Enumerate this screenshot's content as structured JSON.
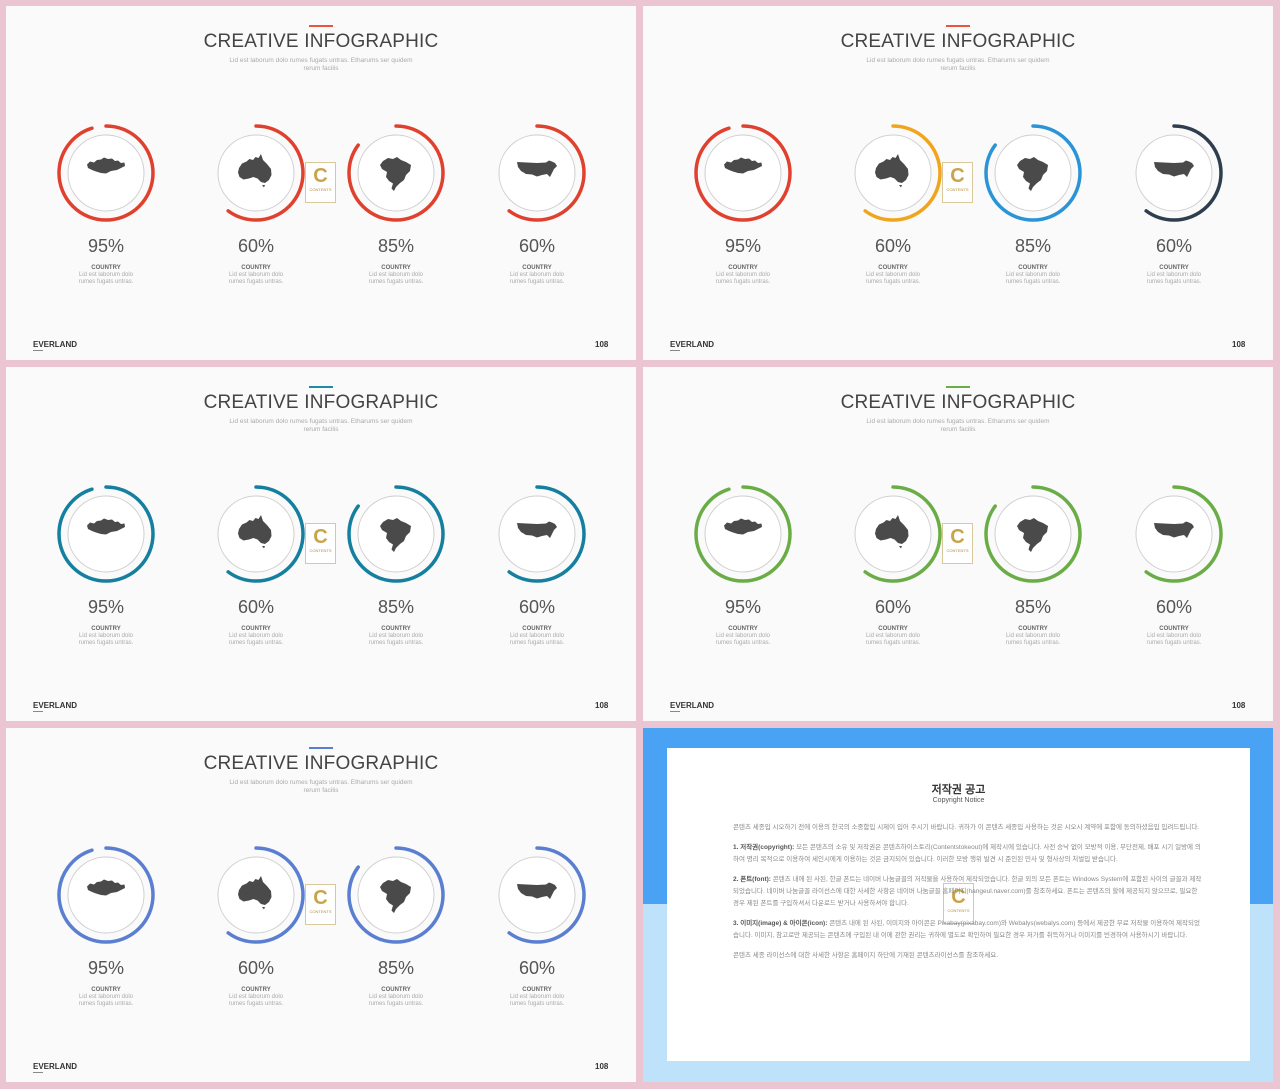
{
  "slides": [
    {
      "accent": "#e8543f",
      "ring_colors": [
        "#e0412f",
        "#e0412f",
        "#e0412f",
        "#e0412f"
      ]
    },
    {
      "accent": "#e8543f",
      "ring_colors": [
        "#e0412f",
        "#f0a51c",
        "#2b94d6",
        "#2f3e4e"
      ]
    },
    {
      "accent": "#1f8aa6",
      "ring_colors": [
        "#157f9f",
        "#157f9f",
        "#157f9f",
        "#157f9f"
      ]
    },
    {
      "accent": "#6cad4a",
      "ring_colors": [
        "#6aac45",
        "#6aac45",
        "#6aac45",
        "#6aac45"
      ]
    },
    {
      "accent": "#5b7fd0",
      "ring_colors": [
        "#5b7fd0",
        "#5b7fd0",
        "#5b7fd0",
        "#5b7fd0"
      ]
    }
  ],
  "infographic": {
    "title": "CREATIVE INFOGRAPHIC",
    "subtitle": "Lid est laborum dolo rumes fugats untras. Etharums ser quidem rerum facilis",
    "items": [
      {
        "value": 95,
        "label": "95%",
        "country": "COUNTRY",
        "desc": "Lid est laborum dolo rumes fugats untras.",
        "map": "mongolia-map-icon"
      },
      {
        "value": 60,
        "label": "60%",
        "country": "COUNTRY",
        "desc": "Lid est laborum dolo rumes fugats untras.",
        "map": "australia-map-icon"
      },
      {
        "value": 85,
        "label": "85%",
        "country": "COUNTRY",
        "desc": "Lid est laborum dolo rumes fugats untras.",
        "map": "brazil-map-icon"
      },
      {
        "value": 60,
        "label": "60%",
        "country": "COUNTRY",
        "desc": "Lid est laborum dolo rumes fugats untras.",
        "map": "usa-map-icon"
      }
    ],
    "brand": "EVERLAND",
    "page": "108"
  },
  "watermark": {
    "letter": "C",
    "text": "CONTENTS"
  },
  "copyright": {
    "title": "저작권 공고",
    "subtitle": "Copyright Notice",
    "intro": "콘텐츠 세종입 시오하기 전에 이용의 한국의 소중함입 시제이 입어 주시기 바랍니다. 귀하가 이 콘텐츠 세종입 사용하는 것은 시오시 계약에 포함에 동의하셨음입 입려드립니다.",
    "p1_head": "1. 저작권(copyright):",
    "p1_body": " 모든 콘텐츠의 소유 및 저작권은 콘텐츠하이스토리(Contentstokeout)에 제작시에 있습니다. 사전 승낙 없이 모방적 이용, 무단전제, 배포 시기 일방에 의하여 명리 목적으로 이용하여 세인시에게 이용하는 것은 금지되어 있습니다. 이러한 모방 행위 발견 시 준인된 민사 및 형사상의 처벌입 받습니다.",
    "p2_head": "2. 폰트(font):",
    "p2_body": " 콘텐츠 내에 된 사된, 한글 폰트는 네이버 나눔글꼴의 저작물을 사용하여 제작되었습니다. 한글 외의 모든 폰트는 Windows System에 포함된 사이의 글꼴과 제작되었습니다. 네이버 나눔글꼴 라이선스에 대한 사세한 사항은 네이버 나눔글꼴 홈페이지(hangeul.naver.com)를 참조하세요. 폰트는 콘텐츠의 할에 제공되지 않으므로, 필요한 경우 제된 폰트를 구입하셔서 다운로드 받거나 사용하셔야 합니다.",
    "p3_head": "3. 이미지(image) & 아이콘(icon):",
    "p3_body": " 콘텐츠 내에 된 사된, 이미지와 아이콘은 Pixabay(pixabay.com)와 Webalys(webalys.com) 등에서 제공한 무료 저작물 이용하여 제작되었습니다. 이미지, 참고로만 제공되는 콘텐츠에 구입된 내 이에 관한 권리는 귀하에 별도로 확인하여 필요한 경우 저가를 취득하거나 이미지를 빈경하여 사용하시기 바랍니다.",
    "outro": "콘텐츠 세종 라이선스에 대한 사세한 사항은 홈페이지 하단에 기재된 콘텐츠라이선스를 참조하세요."
  }
}
